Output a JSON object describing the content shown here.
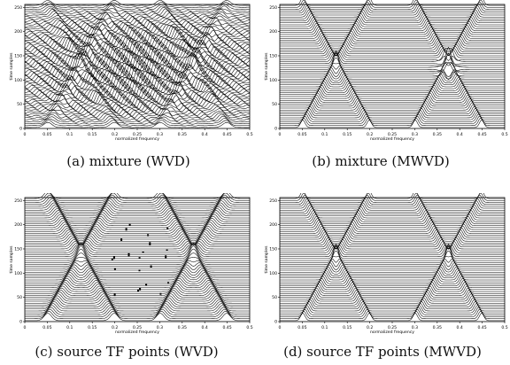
{
  "figure": {
    "panels": [
      {
        "id": "a",
        "caption": "(a)  mixture (WVD)",
        "ylabel": "time samples",
        "xlabel": "normalized frequency",
        "xticks": [
          "0",
          "0.05",
          "0.1",
          "0.15",
          "0.2",
          "0.25",
          "0.3",
          "0.35",
          "0.4",
          "0.45",
          "0.5"
        ],
        "yticks": [
          "0",
          "50",
          "100",
          "150",
          "200",
          "250"
        ],
        "mode": "wvd"
      },
      {
        "id": "b",
        "caption": "(b)  mixture (MWVD)",
        "ylabel": "time samples",
        "xlabel": "normalized frequency",
        "xticks": [
          "0",
          "0.05",
          "0.1",
          "0.15",
          "0.2",
          "0.25",
          "0.3",
          "0.35",
          "0.4",
          "0.45",
          "0.5"
        ],
        "yticks": [
          "0",
          "50",
          "100",
          "150",
          "200",
          "250"
        ],
        "mode": "mwvd"
      },
      {
        "id": "c",
        "caption": "(c)  source TF points (WVD)",
        "ylabel": "time samples",
        "xlabel": "normalized frequency",
        "xticks": [
          "0",
          "0.05",
          "0.1",
          "0.15",
          "0.2",
          "0.25",
          "0.3",
          "0.35",
          "0.4",
          "0.45",
          "0.5"
        ],
        "yticks": [
          "0",
          "50",
          "100",
          "150",
          "200",
          "250"
        ],
        "mode": "tfwvd"
      },
      {
        "id": "d",
        "caption": "(d)  source TF points (MWVD)",
        "ylabel": "time samples",
        "xlabel": "normalized frequency",
        "xticks": [
          "0",
          "0.05",
          "0.1",
          "0.15",
          "0.2",
          "0.25",
          "0.3",
          "0.35",
          "0.4",
          "0.45",
          "0.5"
        ],
        "yticks": [
          "0",
          "50",
          "100",
          "150",
          "200",
          "250"
        ],
        "mode": "tfmwvd"
      }
    ]
  },
  "chart_data": [
    {
      "type": "waterfall",
      "panel": "a",
      "xlabel": "normalized frequency",
      "ylabel": "time samples",
      "xlim": [
        0,
        0.5
      ],
      "ylim": [
        0,
        250
      ],
      "sources": [
        {
          "center_time": 128,
          "center_freq": 0.125,
          "shape": "X"
        },
        {
          "center_time": 128,
          "center_freq": 0.375,
          "shape": "X"
        }
      ],
      "cross_terms": true
    },
    {
      "type": "waterfall",
      "panel": "b",
      "xlabel": "normalized frequency",
      "ylabel": "time samples",
      "xlim": [
        0,
        0.5
      ],
      "ylim": [
        0,
        250
      ],
      "sources": [
        {
          "center_time": 128,
          "center_freq": 0.125,
          "shape": "X"
        },
        {
          "center_time": 128,
          "center_freq": 0.375,
          "shape": "X"
        }
      ],
      "cross_terms": false
    },
    {
      "type": "waterfall",
      "panel": "c",
      "xlabel": "normalized frequency",
      "ylabel": "time samples",
      "xlim": [
        0,
        0.5
      ],
      "ylim": [
        0,
        250
      ],
      "sources": [
        {
          "center_time": 128,
          "center_freq": 0.125,
          "shape": "X"
        },
        {
          "center_time": 128,
          "center_freq": 0.375,
          "shape": "X"
        }
      ],
      "cross_terms": false
    },
    {
      "type": "waterfall",
      "panel": "d",
      "xlabel": "normalized frequency",
      "ylabel": "time samples",
      "xlim": [
        0,
        0.5
      ],
      "ylim": [
        0,
        250
      ],
      "sources": [
        {
          "center_time": 128,
          "center_freq": 0.125,
          "shape": "X"
        },
        {
          "center_time": 128,
          "center_freq": 0.375,
          "shape": "X"
        }
      ],
      "cross_terms": false
    }
  ]
}
